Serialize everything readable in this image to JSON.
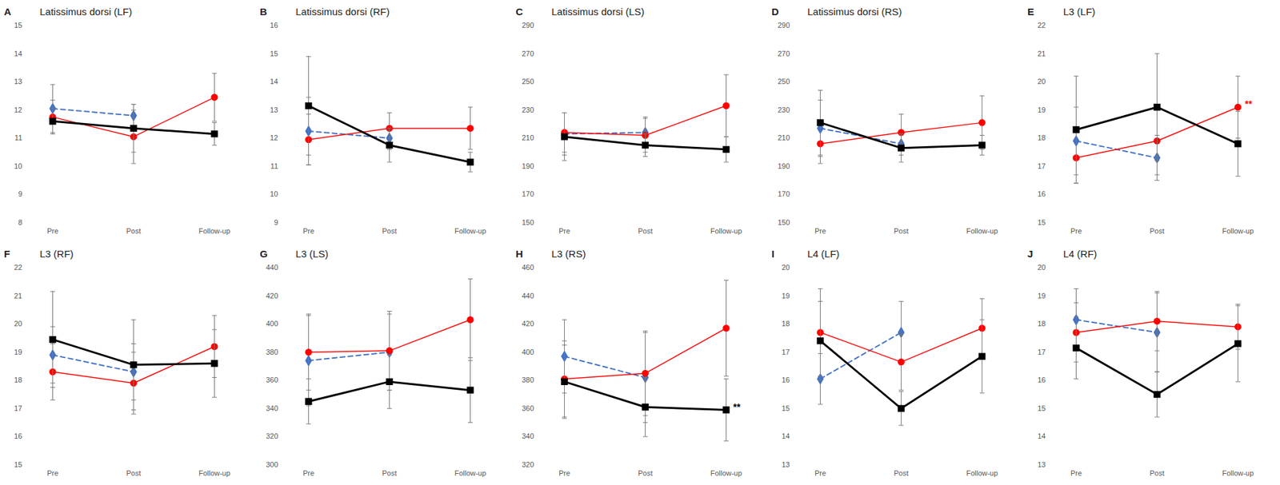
{
  "chart_data": [
    {
      "type": "line",
      "label": "A",
      "title": "Latissimus dorsi (LF)",
      "categories": [
        "Pre",
        "Post",
        "Follow-up"
      ],
      "ylim": [
        8,
        15
      ],
      "yticks": [
        8,
        9,
        10,
        11,
        12,
        13,
        14,
        15
      ],
      "tick_labels": true,
      "series": [
        {
          "color": "#4472c4",
          "marker": "diamond",
          "line_style": "dashed",
          "values": [
            12.05,
            11.8,
            null
          ],
          "errors": [
            0.85,
            0.4,
            null
          ]
        },
        {
          "color": "#ff0000",
          "marker": "circle",
          "line_style": "solid",
          "values": [
            11.75,
            11.05,
            12.45
          ],
          "errors": [
            0.6,
            0.95,
            0.85
          ]
        },
        {
          "color": "#000000",
          "marker": "square",
          "line_style": "solid",
          "values": [
            11.6,
            11.35,
            11.15
          ],
          "errors": [
            0.45,
            0.85,
            0.4
          ]
        }
      ]
    },
    {
      "type": "line",
      "label": "B",
      "title": "Latissimus dorsi (RF)",
      "categories": [
        "Pre",
        "Post",
        "Follow-up"
      ],
      "ylim": [
        9,
        16
      ],
      "yticks": [
        9,
        10,
        11,
        12,
        13,
        14,
        15,
        16
      ],
      "tick_labels": true,
      "series": [
        {
          "color": "#4472c4",
          "marker": "diamond",
          "line_style": "dashed",
          "values": [
            12.25,
            12.0,
            null
          ],
          "errors": [
            1.2,
            0.4,
            null
          ]
        },
        {
          "color": "#ff0000",
          "marker": "circle",
          "line_style": "solid",
          "values": [
            11.95,
            12.35,
            12.35
          ],
          "errors": [
            0.9,
            0.55,
            0.75
          ]
        },
        {
          "color": "#000000",
          "marker": "square",
          "line_style": "solid",
          "values": [
            13.15,
            11.75,
            11.15
          ],
          "errors": [
            1.75,
            0.6,
            0.35
          ]
        }
      ]
    },
    {
      "type": "line",
      "label": "C",
      "title": "Latissimus dorsi (LS)",
      "categories": [
        "Pre",
        "Post",
        "Follow-up"
      ],
      "ylim": [
        150,
        290
      ],
      "yticks": [
        150,
        170,
        190,
        210,
        230,
        250,
        270,
        290
      ],
      "tick_labels": true,
      "series": [
        {
          "color": "#4472c4",
          "marker": "diamond",
          "line_style": "dashed",
          "values": [
            213,
            214,
            null
          ],
          "errors": [
            15,
            11,
            null
          ]
        },
        {
          "color": "#ff0000",
          "marker": "circle",
          "line_style": "solid",
          "values": [
            214,
            212,
            233
          ],
          "errors": [
            14,
            12,
            22
          ]
        },
        {
          "color": "#000000",
          "marker": "square",
          "line_style": "solid",
          "values": [
            211,
            205,
            202
          ],
          "errors": [
            17,
            8,
            9
          ]
        }
      ]
    },
    {
      "type": "line",
      "label": "D",
      "title": "Latissimus dorsi (RS)",
      "categories": [
        "Pre",
        "Post",
        "Follow-up"
      ],
      "ylim": [
        150,
        290
      ],
      "yticks": [
        150,
        170,
        190,
        210,
        230,
        250,
        270,
        290
      ],
      "tick_labels": true,
      "series": [
        {
          "color": "#4472c4",
          "marker": "diamond",
          "line_style": "dashed",
          "values": [
            217,
            206,
            null
          ],
          "errors": [
            20,
            8,
            null
          ]
        },
        {
          "color": "#ff0000",
          "marker": "circle",
          "line_style": "solid",
          "values": [
            206,
            214,
            221
          ],
          "errors": [
            14,
            13,
            19
          ]
        },
        {
          "color": "#000000",
          "marker": "square",
          "line_style": "solid",
          "values": [
            221,
            203,
            205
          ],
          "errors": [
            23,
            10,
            7
          ]
        }
      ]
    },
    {
      "type": "line",
      "label": "E",
      "title": "L3 (LF)",
      "categories": [
        "Pre",
        "Post",
        "Follow-up"
      ],
      "ylim": [
        15,
        22
      ],
      "yticks": [
        15,
        16,
        17,
        18,
        19,
        20,
        21,
        22
      ],
      "tick_labels": true,
      "series": [
        {
          "color": "#4472c4",
          "marker": "diamond",
          "line_style": "dashed",
          "values": [
            17.9,
            17.3,
            null
          ],
          "errors": [
            1.2,
            0.8,
            null
          ]
        },
        {
          "color": "#ff0000",
          "marker": "circle",
          "line_style": "solid",
          "values": [
            17.3,
            17.9,
            19.1
          ],
          "errors": [
            0.9,
            1.2,
            1.1
          ],
          "annotation": {
            "x": "Follow-up",
            "text": "**"
          }
        },
        {
          "color": "#000000",
          "marker": "square",
          "line_style": "solid",
          "values": [
            18.3,
            19.1,
            17.8
          ],
          "errors": [
            1.9,
            1.9,
            1.15
          ]
        }
      ]
    },
    {
      "type": "line",
      "label": "F",
      "title": "L3 (RF)",
      "categories": [
        "Pre",
        "Post",
        "Follow-up"
      ],
      "ylim": [
        15,
        22
      ],
      "yticks": [
        15,
        16,
        17,
        18,
        19,
        20,
        21,
        22
      ],
      "tick_labels": true,
      "series": [
        {
          "color": "#4472c4",
          "marker": "diamond",
          "line_style": "dashed",
          "values": [
            18.9,
            18.3,
            null
          ],
          "errors": [
            1.0,
            1.0,
            null
          ]
        },
        {
          "color": "#ff0000",
          "marker": "circle",
          "line_style": "solid",
          "values": [
            18.3,
            17.9,
            19.2
          ],
          "errors": [
            1.0,
            1.1,
            1.1
          ]
        },
        {
          "color": "#000000",
          "marker": "square",
          "line_style": "solid",
          "values": [
            19.45,
            18.55,
            18.6
          ],
          "errors": [
            1.7,
            1.6,
            1.2
          ]
        }
      ]
    },
    {
      "type": "line",
      "label": "G",
      "title": "L3 (LS)",
      "categories": [
        "Pre",
        "Post",
        "Follow-up"
      ],
      "ylim": [
        300,
        440
      ],
      "yticks": [
        300,
        320,
        340,
        360,
        380,
        400,
        420,
        440
      ],
      "tick_labels": true,
      "series": [
        {
          "color": "#4472c4",
          "marker": "diamond",
          "line_style": "dashed",
          "values": [
            374,
            380,
            null
          ],
          "errors": [
            32,
            27,
            null
          ]
        },
        {
          "color": "#ff0000",
          "marker": "circle",
          "line_style": "solid",
          "values": [
            380,
            381,
            403
          ],
          "errors": [
            27,
            28,
            29
          ]
        },
        {
          "color": "#000000",
          "marker": "square",
          "line_style": "solid",
          "values": [
            345,
            359,
            353
          ],
          "errors": [
            16,
            19,
            23
          ]
        }
      ]
    },
    {
      "type": "line",
      "label": "H",
      "title": "L3 (RS)",
      "categories": [
        "Pre",
        "Post",
        "Follow-up"
      ],
      "ylim": [
        320,
        460
      ],
      "yticks": [
        320,
        340,
        360,
        380,
        400,
        420,
        440,
        460
      ],
      "tick_labels": true,
      "series": [
        {
          "color": "#4472c4",
          "marker": "diamond",
          "line_style": "dashed",
          "values": [
            397,
            382,
            null
          ],
          "errors": [
            26,
            32,
            null
          ]
        },
        {
          "color": "#ff0000",
          "marker": "circle",
          "line_style": "solid",
          "values": [
            381,
            385,
            417
          ],
          "errors": [
            27,
            30,
            34
          ]
        },
        {
          "color": "#000000",
          "marker": "square",
          "line_style": "solid",
          "values": [
            379,
            361,
            359
          ],
          "errors": [
            26,
            21,
            22
          ],
          "annotation": {
            "x": "Follow-up",
            "text": "**"
          }
        }
      ]
    },
    {
      "type": "line",
      "label": "I",
      "title": "L4 (LF)",
      "categories": [
        "Pre",
        "Post",
        "Follow-up"
      ],
      "ylim": [
        13,
        20
      ],
      "yticks": [
        13,
        14,
        15,
        16,
        17,
        18,
        19,
        20
      ],
      "tick_labels": true,
      "series": [
        {
          "color": "#4472c4",
          "marker": "diamond",
          "line_style": "dashed",
          "values": [
            16.05,
            17.7,
            null
          ],
          "errors": [
            0.9,
            1.1,
            null
          ]
        },
        {
          "color": "#ff0000",
          "marker": "circle",
          "line_style": "solid",
          "values": [
            17.7,
            16.65,
            17.85
          ],
          "errors": [
            1.55,
            1.0,
            1.05
          ]
        },
        {
          "color": "#000000",
          "marker": "square",
          "line_style": "solid",
          "values": [
            17.4,
            15.0,
            16.85
          ],
          "errors": [
            1.4,
            0.6,
            1.3
          ]
        }
      ]
    },
    {
      "type": "line",
      "label": "J",
      "title": "L4 (RF)",
      "categories": [
        "Pre",
        "Post",
        "Follow-up"
      ],
      "ylim": [
        13,
        20
      ],
      "yticks": [
        13,
        14,
        15,
        16,
        17,
        18,
        19,
        20
      ],
      "tick_labels": true,
      "series": [
        {
          "color": "#4472c4",
          "marker": "diamond",
          "line_style": "dashed",
          "values": [
            18.15,
            17.7,
            null
          ],
          "errors": [
            1.1,
            1.4,
            null
          ]
        },
        {
          "color": "#ff0000",
          "marker": "circle",
          "line_style": "solid",
          "values": [
            17.7,
            18.1,
            17.9
          ],
          "errors": [
            1.05,
            1.05,
            0.8
          ]
        },
        {
          "color": "#000000",
          "marker": "square",
          "line_style": "solid",
          "values": [
            17.15,
            15.5,
            17.3
          ],
          "errors": [
            1.1,
            0.8,
            1.35
          ]
        }
      ]
    }
  ]
}
